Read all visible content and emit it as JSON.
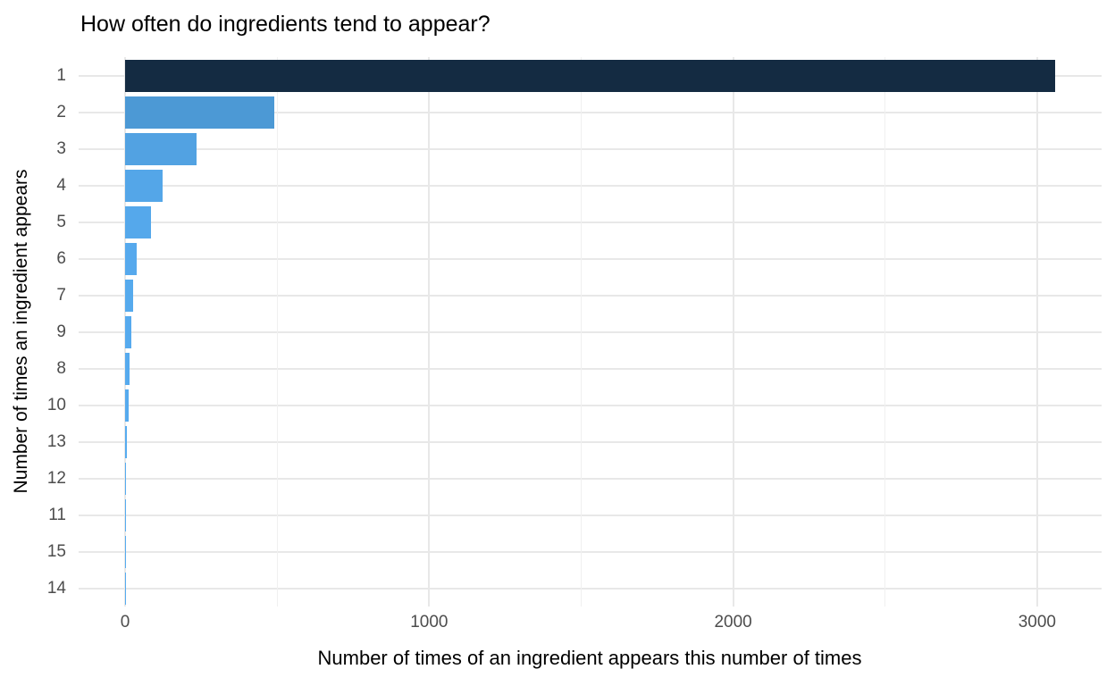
{
  "title": "How often do ingredients tend to appear?",
  "chart_data": {
    "type": "bar",
    "orientation": "horizontal",
    "title": "How often do ingredients tend to appear?",
    "xlabel": "Number of times of an ingredient appears this number of times",
    "ylabel": "Number of times an ingredient appears",
    "categories": [
      "1",
      "2",
      "3",
      "4",
      "5",
      "6",
      "7",
      "9",
      "8",
      "10",
      "13",
      "12",
      "11",
      "15",
      "14"
    ],
    "values": [
      3060,
      490,
      236,
      124,
      84,
      38,
      27,
      19,
      16,
      12,
      6,
      4,
      3,
      2,
      1
    ],
    "bar_colors": [
      "#142B42",
      "#4C99D5",
      "#52A2E2",
      "#54A6E8",
      "#55A8EB",
      "#56A9ED",
      "#56AAED",
      "#56AAEE",
      "#56AAEE",
      "#56AAEE",
      "#56ABEF",
      "#56ABEF",
      "#56ABEF",
      "#56ABEF",
      "#56ABEF"
    ],
    "x_ticks": [
      0,
      1000,
      2000,
      3000
    ],
    "x_tick_labels": [
      "0",
      "1000",
      "2000",
      "3000"
    ],
    "x_minor_ticks": [
      500,
      1500,
      2500
    ],
    "xlim": [
      -153,
      3212
    ],
    "grid": true,
    "legend_position": "none",
    "background_color": "#FFFFFF",
    "major_grid_color": "#E8E8E8",
    "minor_grid_color": "#F0F0F0",
    "axis_text_color": "#4D4D4D",
    "title_color": "#000000"
  }
}
